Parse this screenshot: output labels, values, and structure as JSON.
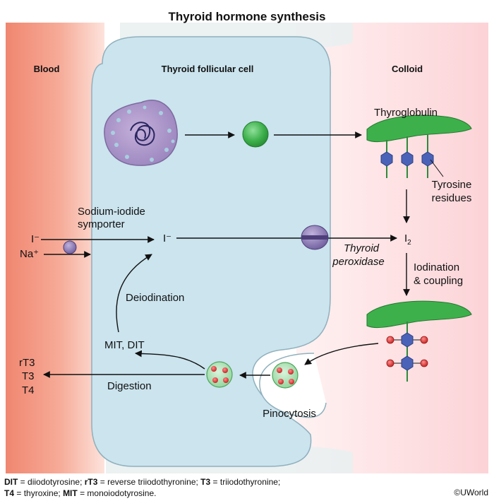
{
  "title": "Thyroid hormone synthesis",
  "regions": {
    "blood": "Blood",
    "cell": "Thyroid follicular cell",
    "colloid": "Colloid"
  },
  "labels": {
    "thyroglobulin": "Thyroglobulin",
    "tyrosine_line1": "Tyrosine",
    "tyrosine_line2": "residues",
    "symporter_line1": "Sodium-iodide",
    "symporter_line2": "symporter",
    "iodide_blood": "I⁻",
    "sodium": "Na⁺",
    "iodide_cell": "I⁻",
    "iodine": "I",
    "iodine_sub": "2",
    "peroxidase_line1": "Thyroid",
    "peroxidase_line2": "peroxidase",
    "iodination_line1": "Iodination",
    "iodination_line2": "& coupling",
    "deiodination": "Deiodination",
    "mit_dit": "MIT, DIT",
    "digestion": "Digestion",
    "pinocytosis": "Pinocytosis",
    "rt3": "rT3",
    "t3": "T3",
    "t4": "T4"
  },
  "footer": {
    "dit_abbr": "DIT",
    "dit_def": " = diiodotyrosine; ",
    "rt3_abbr": "rT3",
    "rt3_def": " = reverse triiodothyronine; ",
    "t3_abbr": "T3",
    "t3_def": " = triiodothyronine;",
    "t4_abbr": "T4",
    "t4_def": " = thyroxine; ",
    "mit_abbr": "MIT",
    "mit_def": " = monoiodotyrosine."
  },
  "copyright": "©UWorld",
  "colors": {
    "blood": "#f08a73",
    "colloid": "#fde0e2",
    "cell": "#cfe6ef",
    "cell_outline": "#8aa6b2",
    "thyroglobulin": "#3db04b",
    "tyrosine": "#4a63b8",
    "iodine_atom": "#d42a2a",
    "symporter": "#7b6aa7"
  }
}
